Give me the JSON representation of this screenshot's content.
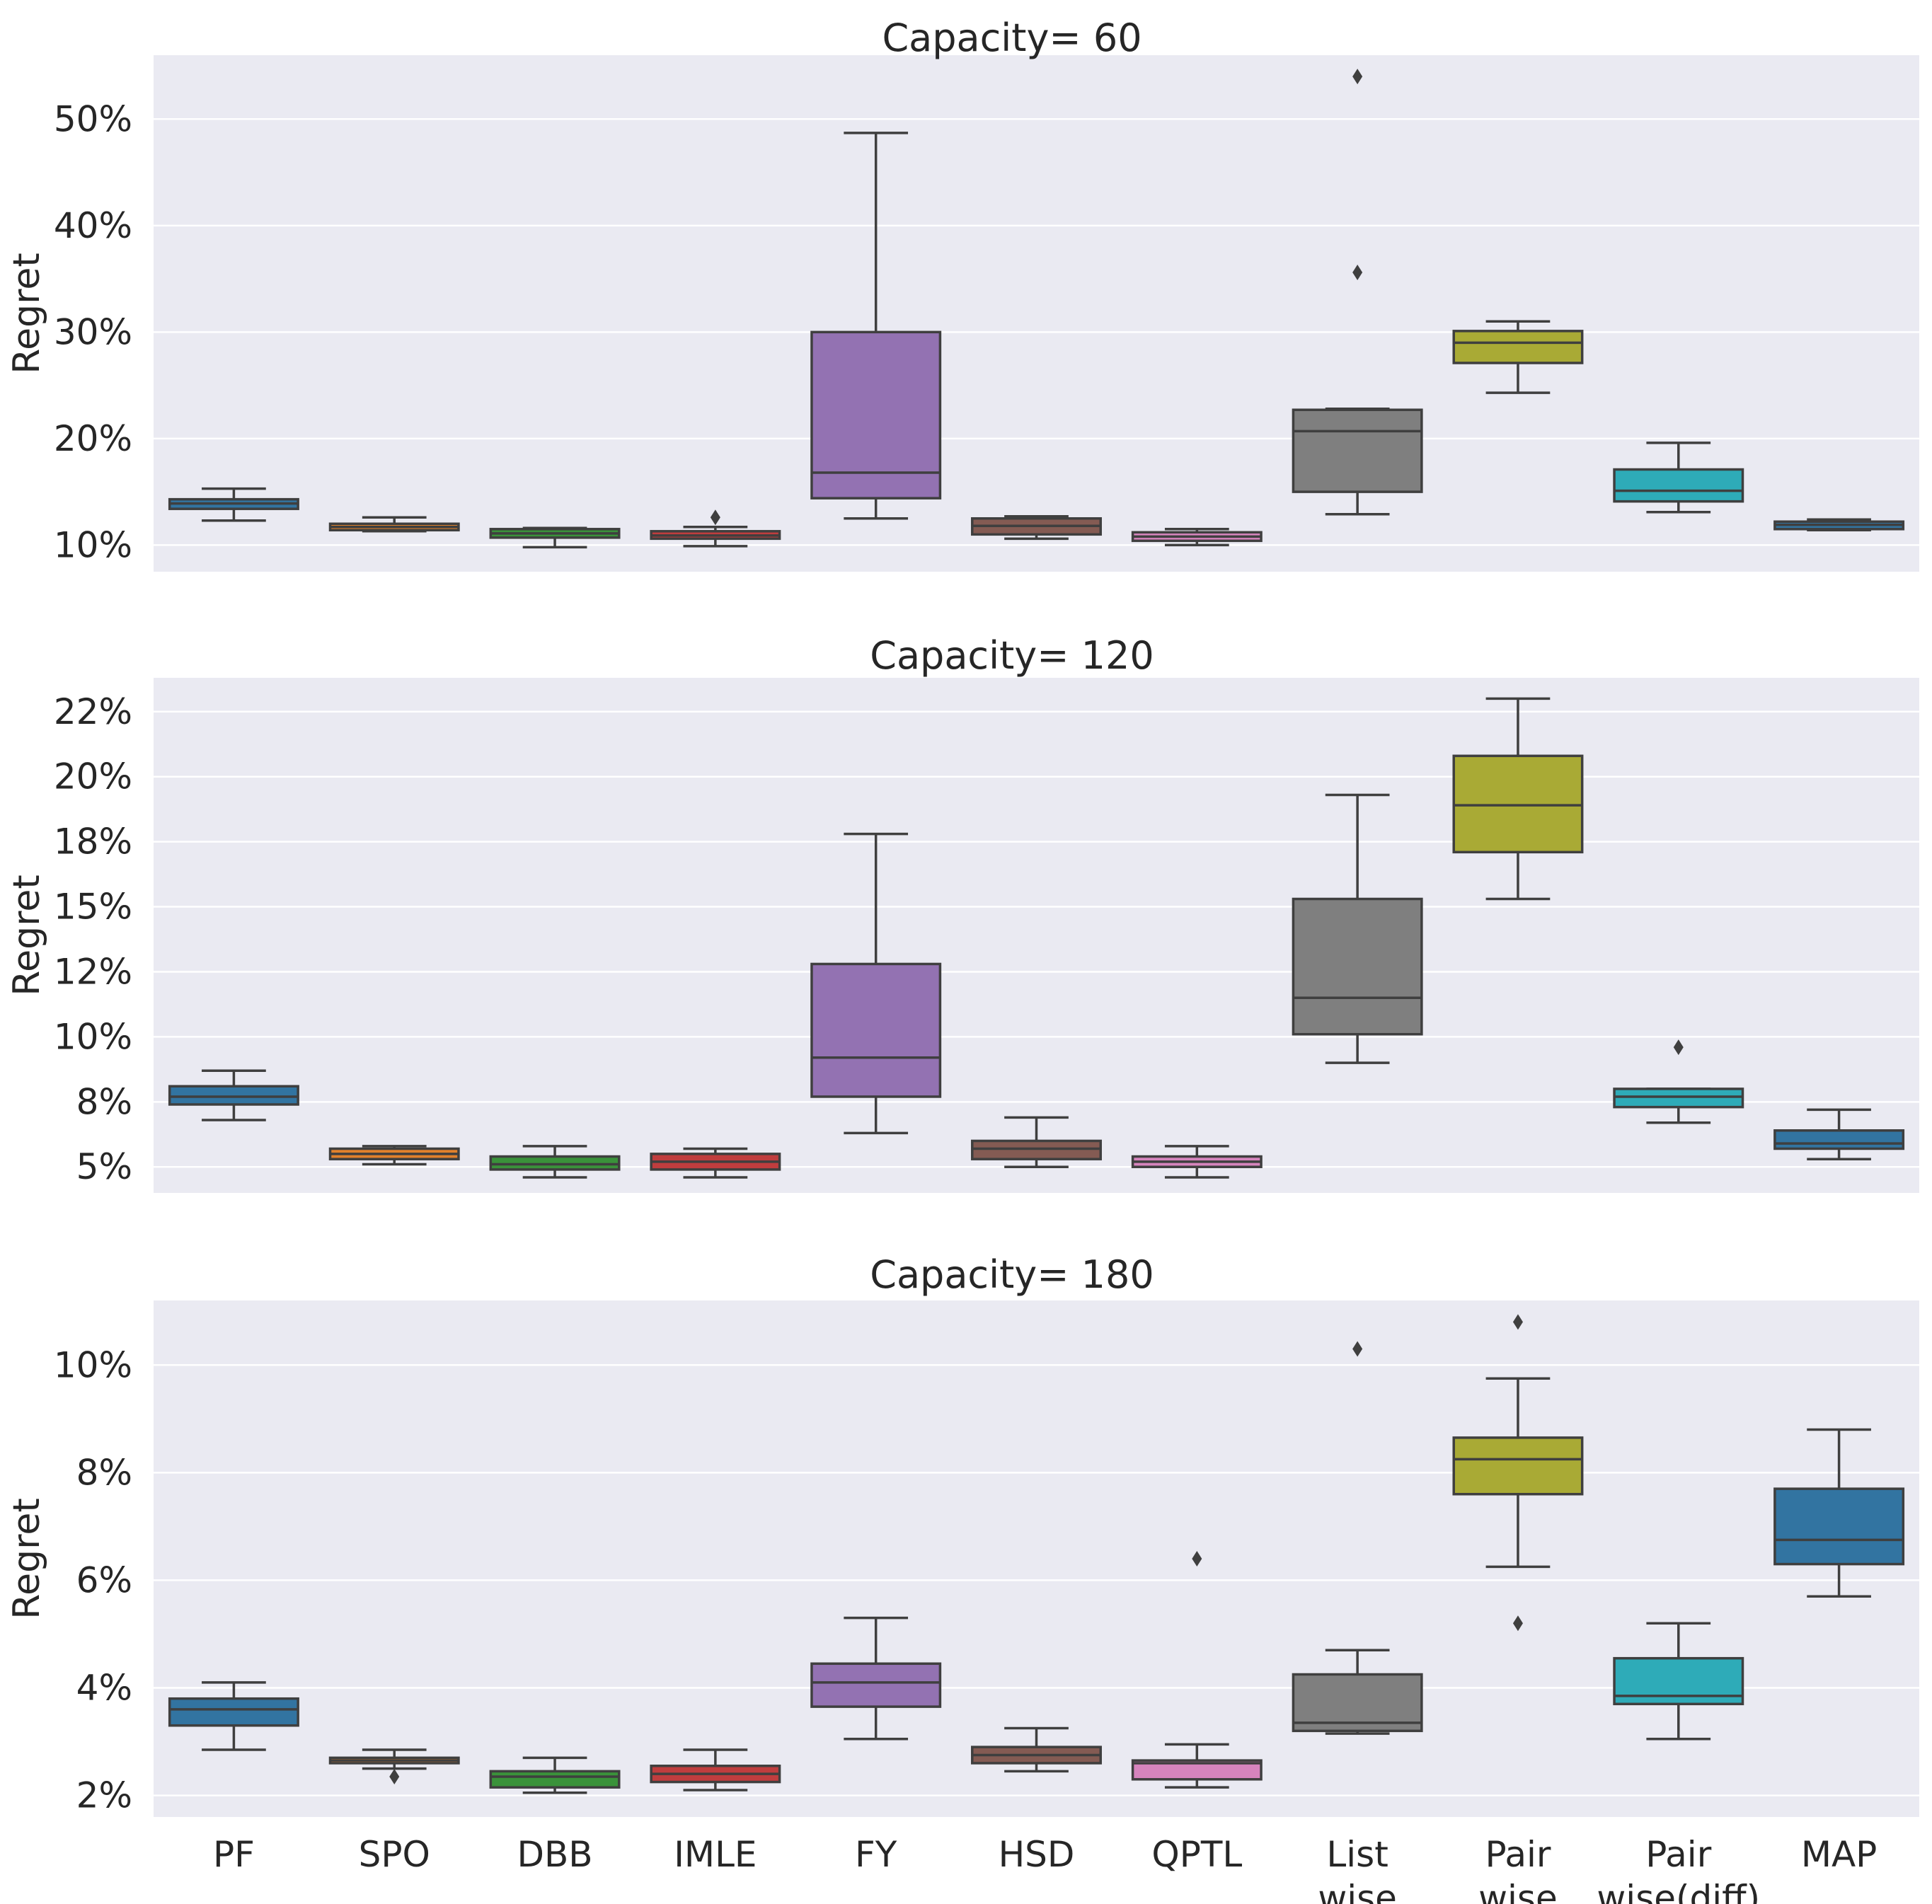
{
  "chart_data": [
    {
      "type": "box",
      "title": "Capacity= 60",
      "ylabel": "Regret",
      "ylim": [
        7.5,
        56
      ],
      "yticks": [
        10,
        20,
        30,
        40,
        50
      ],
      "yticklabels": [
        "10%",
        "20%",
        "30%",
        "40%",
        "50%"
      ],
      "boxes": [
        {
          "category": "PF",
          "color": "#3274a1",
          "whislo": 12.3,
          "q1": 13.4,
          "med": 13.9,
          "q3": 14.3,
          "whishi": 15.3,
          "fliers": []
        },
        {
          "category": "SPO",
          "color": "#e1812c",
          "whislo": 11.3,
          "q1": 11.4,
          "med": 11.7,
          "q3": 12.0,
          "whishi": 12.6,
          "fliers": []
        },
        {
          "category": "DBB",
          "color": "#3a923a",
          "whislo": 9.8,
          "q1": 10.7,
          "med": 11.1,
          "q3": 11.5,
          "whishi": 11.6,
          "fliers": []
        },
        {
          "category": "IMLE",
          "color": "#c03d3e",
          "whislo": 9.9,
          "q1": 10.6,
          "med": 10.9,
          "q3": 11.3,
          "whishi": 11.7,
          "fliers": [
            12.6
          ]
        },
        {
          "category": "FY",
          "color": "#9372b2",
          "whislo": 12.5,
          "q1": 14.4,
          "med": 16.8,
          "q3": 30.0,
          "whishi": 48.7,
          "fliers": []
        },
        {
          "category": "HSD",
          "color": "#845b53",
          "whislo": 10.6,
          "q1": 11.0,
          "med": 11.8,
          "q3": 12.5,
          "whishi": 12.7,
          "fliers": []
        },
        {
          "category": "QPTL",
          "color": "#d684bd",
          "whislo": 10.0,
          "q1": 10.4,
          "med": 10.8,
          "q3": 11.2,
          "whishi": 11.5,
          "fliers": []
        },
        {
          "category": "List wise",
          "color": "#7f7f7f",
          "whislo": 12.9,
          "q1": 15.0,
          "med": 20.7,
          "q3": 22.7,
          "whishi": 22.8,
          "fliers": [
            35.6,
            54.0
          ]
        },
        {
          "category": "Pair wise",
          "color": "#a9aa35",
          "whislo": 24.3,
          "q1": 27.1,
          "med": 29.0,
          "q3": 30.1,
          "whishi": 31.0,
          "fliers": []
        },
        {
          "category": "Pair wise(diff)",
          "color": "#2eabb8",
          "whislo": 13.1,
          "q1": 14.1,
          "med": 15.1,
          "q3": 17.1,
          "whishi": 19.6,
          "fliers": []
        },
        {
          "category": "MAP",
          "color": "#3274a1",
          "whislo": 11.4,
          "q1": 11.5,
          "med": 11.9,
          "q3": 12.2,
          "whishi": 12.4,
          "fliers": []
        }
      ]
    },
    {
      "type": "box",
      "title": "Capacity= 120",
      "ylabel": "Regret",
      "ylim": [
        4.0,
        23.8
      ],
      "yticks": [
        5,
        7.5,
        10,
        12.5,
        15,
        17.5,
        20,
        22.5
      ],
      "yticklabels": [
        "5%",
        "8%",
        "10%",
        "12%",
        "15%",
        "18%",
        "20%",
        "22%"
      ],
      "boxes": [
        {
          "category": "PF",
          "color": "#3274a1",
          "whislo": 6.8,
          "q1": 7.4,
          "med": 7.7,
          "q3": 8.1,
          "whishi": 8.7,
          "fliers": []
        },
        {
          "category": "SPO",
          "color": "#e1812c",
          "whislo": 5.1,
          "q1": 5.3,
          "med": 5.5,
          "q3": 5.7,
          "whishi": 5.8,
          "fliers": []
        },
        {
          "category": "DBB",
          "color": "#3a923a",
          "whislo": 4.6,
          "q1": 4.9,
          "med": 5.1,
          "q3": 5.4,
          "whishi": 5.8,
          "fliers": []
        },
        {
          "category": "IMLE",
          "color": "#c03d3e",
          "whislo": 4.6,
          "q1": 4.9,
          "med": 5.2,
          "q3": 5.5,
          "whishi": 5.7,
          "fliers": []
        },
        {
          "category": "FY",
          "color": "#9372b2",
          "whislo": 6.3,
          "q1": 7.7,
          "med": 9.2,
          "q3": 12.8,
          "whishi": 17.8,
          "fliers": []
        },
        {
          "category": "HSD",
          "color": "#845b53",
          "whislo": 5.0,
          "q1": 5.3,
          "med": 5.7,
          "q3": 6.0,
          "whishi": 6.9,
          "fliers": []
        },
        {
          "category": "QPTL",
          "color": "#d684bd",
          "whislo": 4.6,
          "q1": 5.0,
          "med": 5.2,
          "q3": 5.4,
          "whishi": 5.8,
          "fliers": []
        },
        {
          "category": "List wise",
          "color": "#7f7f7f",
          "whislo": 9.0,
          "q1": 10.1,
          "med": 11.5,
          "q3": 15.3,
          "whishi": 19.3,
          "fliers": []
        },
        {
          "category": "Pair wise",
          "color": "#a9aa35",
          "whislo": 15.3,
          "q1": 17.1,
          "med": 18.9,
          "q3": 20.8,
          "whishi": 23.0,
          "fliers": []
        },
        {
          "category": "Pair wise(diff)",
          "color": "#2eabb8",
          "whislo": 6.7,
          "q1": 7.3,
          "med": 7.7,
          "q3": 8.0,
          "whishi": 8.0,
          "fliers": [
            9.6
          ]
        },
        {
          "category": "MAP",
          "color": "#3274a1",
          "whislo": 5.3,
          "q1": 5.7,
          "med": 5.9,
          "q3": 6.4,
          "whishi": 7.2,
          "fliers": []
        }
      ]
    },
    {
      "type": "box",
      "title": "Capacity= 180",
      "ylabel": "Regret",
      "ylim": [
        1.6,
        11.2
      ],
      "yticks": [
        2,
        4,
        6,
        8,
        10
      ],
      "yticklabels": [
        "2%",
        "4%",
        "6%",
        "8%",
        "10%"
      ],
      "xticklabels": [
        "PF",
        "SPO",
        "DBB",
        "IMLE",
        "FY",
        "HSD",
        "QPTL",
        "List\nwise",
        "Pair\nwise",
        "Pair\nwise(diff)",
        "MAP"
      ],
      "boxes": [
        {
          "category": "PF",
          "color": "#3274a1",
          "whislo": 2.85,
          "q1": 3.3,
          "med": 3.6,
          "q3": 3.8,
          "whishi": 4.1,
          "fliers": []
        },
        {
          "category": "SPO",
          "color": "#e1812c",
          "whislo": 2.5,
          "q1": 2.6,
          "med": 2.65,
          "q3": 2.7,
          "whishi": 2.85,
          "fliers": [
            2.35
          ]
        },
        {
          "category": "DBB",
          "color": "#3a923a",
          "whislo": 2.05,
          "q1": 2.15,
          "med": 2.35,
          "q3": 2.45,
          "whishi": 2.7,
          "fliers": []
        },
        {
          "category": "IMLE",
          "color": "#c03d3e",
          "whislo": 2.1,
          "q1": 2.25,
          "med": 2.4,
          "q3": 2.55,
          "whishi": 2.85,
          "fliers": []
        },
        {
          "category": "FY",
          "color": "#9372b2",
          "whislo": 3.05,
          "q1": 3.65,
          "med": 4.1,
          "q3": 4.45,
          "whishi": 5.3,
          "fliers": []
        },
        {
          "category": "HSD",
          "color": "#845b53",
          "whislo": 2.45,
          "q1": 2.6,
          "med": 2.75,
          "q3": 2.9,
          "whishi": 3.25,
          "fliers": []
        },
        {
          "category": "QPTL",
          "color": "#d684bd",
          "whislo": 2.15,
          "q1": 2.3,
          "med": 2.6,
          "q3": 2.65,
          "whishi": 2.95,
          "fliers": [
            6.4
          ]
        },
        {
          "category": "List wise",
          "color": "#7f7f7f",
          "whislo": 3.15,
          "q1": 3.2,
          "med": 3.35,
          "q3": 4.25,
          "whishi": 4.7,
          "fliers": [
            10.3
          ]
        },
        {
          "category": "Pair wise",
          "color": "#a9aa35",
          "whislo": 6.25,
          "q1": 7.6,
          "med": 8.25,
          "q3": 8.65,
          "whishi": 9.75,
          "fliers": [
            5.2,
            10.8
          ]
        },
        {
          "category": "Pair wise(diff)",
          "color": "#2eabb8",
          "whislo": 3.05,
          "q1": 3.7,
          "med": 3.85,
          "q3": 4.55,
          "whishi": 5.2,
          "fliers": []
        },
        {
          "category": "MAP",
          "color": "#3274a1",
          "whislo": 5.7,
          "q1": 6.3,
          "med": 6.75,
          "q3": 7.7,
          "whishi": 8.8,
          "fliers": []
        }
      ]
    }
  ]
}
